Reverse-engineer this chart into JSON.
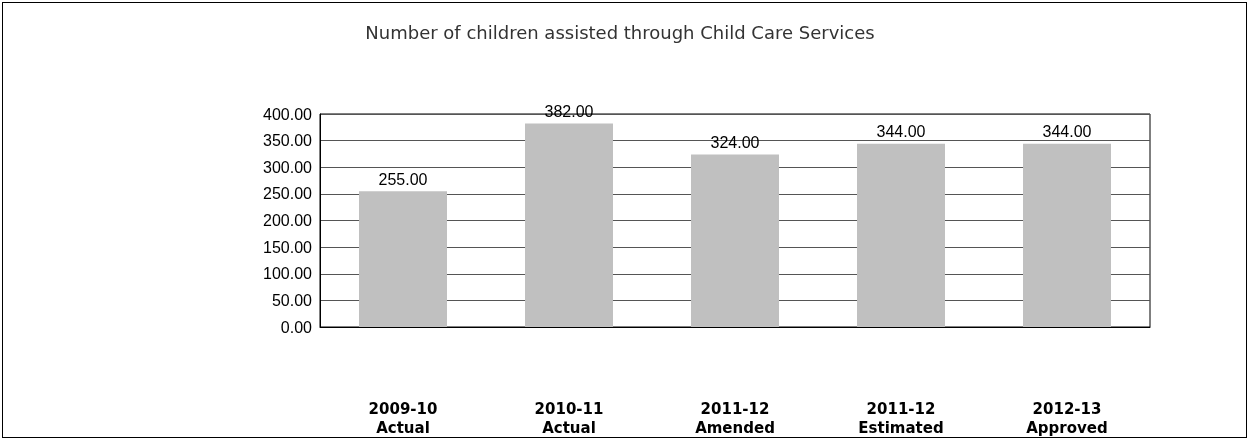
{
  "chart_data": {
    "type": "bar",
    "title": "Number of children assisted through Child Care Services",
    "categories": [
      "2009-10 Actual",
      "2010-11 Actual",
      "2011-12 Amended",
      "2011-12 Estimated",
      "2012-13 Approved"
    ],
    "values": [
      255,
      382,
      324,
      344,
      344
    ],
    "value_labels": [
      "255.00",
      "382.00",
      "324.00",
      "344.00",
      "344.00"
    ],
    "color": "#c0c0c0",
    "ylim": [
      0,
      400
    ],
    "yticks": [
      {
        "value": 0,
        "label": "0.00"
      },
      {
        "value": 50,
        "label": "50.00"
      },
      {
        "value": 100,
        "label": "100.00"
      },
      {
        "value": 150,
        "label": "150.00"
      },
      {
        "value": 200,
        "label": "200.00"
      },
      {
        "value": 250,
        "label": "250.00"
      },
      {
        "value": 300,
        "label": "300.00"
      },
      {
        "value": 350,
        "label": "350.00"
      },
      {
        "value": 400,
        "label": "400.00"
      }
    ],
    "grid": "y"
  }
}
